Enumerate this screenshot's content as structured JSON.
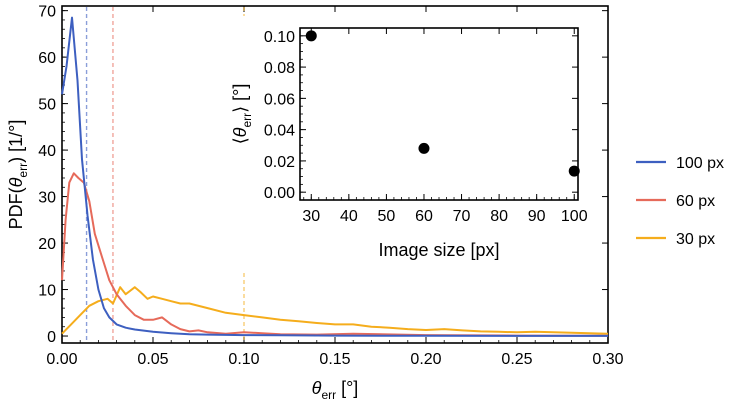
{
  "chart_data": [
    {
      "type": "line",
      "xlabel": {
        "sym": "θ",
        "sub": "err",
        "unit": " [°]"
      },
      "ylabel": {
        "pre": "PDF(",
        "sym": "θ",
        "sub": "err",
        "post": ") [1/°]"
      },
      "xlim": [
        0,
        0.3
      ],
      "ylim": [
        -1.5,
        71
      ],
      "xticks": [
        0,
        0.05,
        0.1,
        0.15,
        0.2,
        0.25,
        0.3
      ],
      "xtick_labels": [
        "0.00",
        "0.05",
        "0.10",
        "0.15",
        "0.20",
        "0.25",
        "0.30"
      ],
      "yticks": [
        0,
        10,
        20,
        30,
        40,
        50,
        60,
        70
      ],
      "ytick_labels": [
        "0",
        "10",
        "20",
        "30",
        "40",
        "50",
        "60",
        "70"
      ],
      "legend_position": "right",
      "series": [
        {
          "name": "100 px",
          "color": "#3d5fc0",
          "mean_line": 0.0135,
          "x": [
            0,
            0.0025,
            0.0055,
            0.0085,
            0.011,
            0.014,
            0.017,
            0.02,
            0.023,
            0.026,
            0.03,
            0.035,
            0.04,
            0.05,
            0.06,
            0.07,
            0.08,
            0.1,
            0.12,
            0.15,
            0.2,
            0.25,
            0.3
          ],
          "y": [
            52,
            58,
            68.5,
            55,
            38,
            26,
            16.5,
            10,
            6,
            4,
            2.5,
            1.8,
            1.4,
            0.9,
            0.6,
            0.4,
            0.3,
            0.2,
            0.15,
            0.1,
            0.05,
            0.02,
            0.02
          ]
        },
        {
          "name": "60 px",
          "color": "#e66a5a",
          "mean_line": 0.028,
          "x": [
            0,
            0.002,
            0.004,
            0.0065,
            0.009,
            0.012,
            0.015,
            0.018,
            0.022,
            0.026,
            0.03,
            0.035,
            0.04,
            0.045,
            0.05,
            0.055,
            0.06,
            0.065,
            0.07,
            0.075,
            0.08,
            0.09,
            0.1,
            0.11,
            0.12,
            0.14,
            0.16,
            0.2,
            0.25,
            0.3
          ],
          "y": [
            12,
            25,
            33,
            35,
            34,
            33,
            29,
            22,
            17,
            12,
            9,
            6.5,
            4.5,
            3.5,
            3.5,
            4,
            2.5,
            1.5,
            1,
            1.2,
            0.8,
            0.5,
            0.8,
            0.6,
            0.4,
            0.3,
            0.5,
            0.2,
            0.1,
            0.05
          ]
        },
        {
          "name": "30 px",
          "color": "#f5ad1c",
          "mean_line": 0.1,
          "x": [
            0,
            0.005,
            0.01,
            0.015,
            0.02,
            0.025,
            0.028,
            0.032,
            0.035,
            0.04,
            0.043,
            0.047,
            0.05,
            0.055,
            0.06,
            0.065,
            0.07,
            0.08,
            0.09,
            0.1,
            0.11,
            0.12,
            0.13,
            0.14,
            0.15,
            0.16,
            0.17,
            0.18,
            0.19,
            0.2,
            0.21,
            0.22,
            0.23,
            0.24,
            0.25,
            0.26,
            0.27,
            0.28,
            0.29,
            0.3
          ],
          "y": [
            0.5,
            2.5,
            4.5,
            6.5,
            7.5,
            8,
            7,
            10.5,
            9,
            10.5,
            9.5,
            8,
            8.5,
            8,
            7.5,
            7,
            7,
            6,
            5,
            4.5,
            4,
            3.5,
            3.2,
            2.8,
            2.5,
            2.5,
            2,
            1.8,
            1.5,
            1.3,
            1.5,
            1.2,
            1,
            0.9,
            0.8,
            0.9,
            0.8,
            0.7,
            0.6,
            0.5
          ]
        }
      ]
    },
    {
      "type": "scatter",
      "xlabel": "Image size [px]",
      "ylabel": {
        "pre": "⟨",
        "sym": "θ",
        "sub": "err",
        "post": "⟩ [°]"
      },
      "xlim": [
        27,
        101
      ],
      "ylim": [
        -0.005,
        0.105
      ],
      "xticks": [
        30,
        40,
        50,
        60,
        70,
        80,
        90,
        100
      ],
      "xtick_labels": [
        "30",
        "40",
        "50",
        "60",
        "70",
        "80",
        "90",
        "100"
      ],
      "yticks": [
        0,
        0.02,
        0.04,
        0.06,
        0.08,
        0.1
      ],
      "ytick_labels": [
        "0.00",
        "0.02",
        "0.04",
        "0.06",
        "0.08",
        "0.10"
      ],
      "points": [
        {
          "x": 30,
          "y": 0.1
        },
        {
          "x": 60,
          "y": 0.028
        },
        {
          "x": 100,
          "y": 0.0135
        }
      ]
    }
  ]
}
